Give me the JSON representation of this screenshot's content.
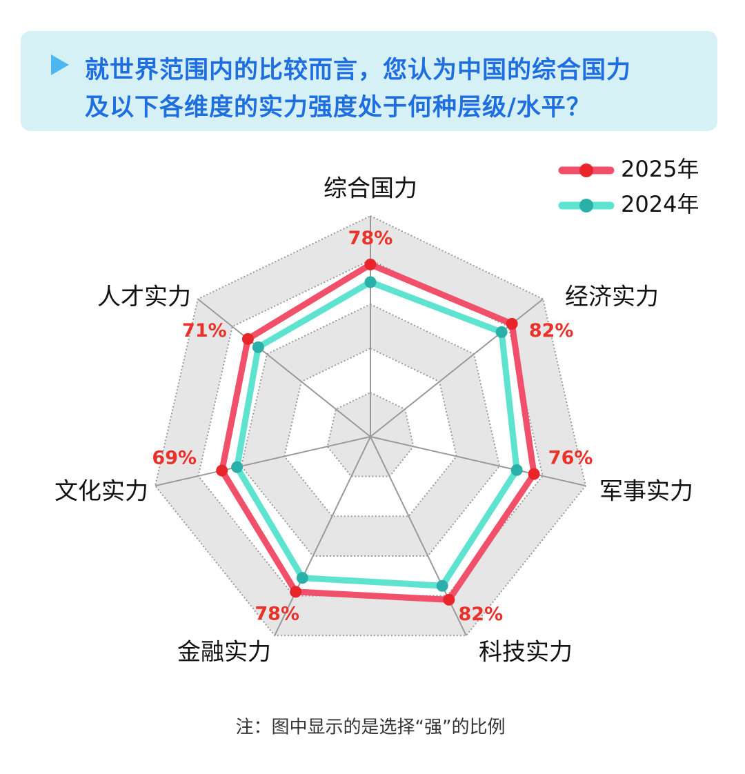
{
  "header": {
    "title_lines": [
      "就世界范围内的比较而言，您认为中国的综合国力",
      "及以下各维度的实力强度处于何种层级/水平？"
    ]
  },
  "chart_data": {
    "type": "radar",
    "categories": [
      "综合国力",
      "经济实力",
      "军事实力",
      "科技实力",
      "金融实力",
      "文化实力",
      "人才实力"
    ],
    "series": [
      {
        "name": "2025年",
        "color": "#f0506a",
        "marker_color": "#e8262a",
        "values": [
          78,
          82,
          76,
          82,
          78,
          69,
          71
        ],
        "value_labels": [
          "78%",
          "82%",
          "76%",
          "82%",
          "78%",
          "69%",
          "71%"
        ]
      },
      {
        "name": "2024年",
        "color": "#5ee3d0",
        "marker_color": "#2ab0a8",
        "values": [
          70,
          76,
          68,
          75,
          71,
          62,
          65
        ]
      }
    ],
    "rlim": [
      0,
      100
    ],
    "rticks": [
      20,
      40,
      60,
      80,
      100
    ],
    "grid": true,
    "legend": "upper right",
    "note": "注：图中显示的是选择“强”的比例"
  }
}
